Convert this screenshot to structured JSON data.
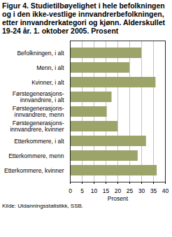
{
  "chart_data": {
    "type": "bar",
    "orientation": "horizontal",
    "title": "Figur 4. Studietilbøyelighet i hele befolkningen og i den ikke-vestlige innvandrerbefolkningen, etter innvandrerkategori og kjønn. Alderskullet 19-24 år. 1. oktober 2005. Prosent",
    "categories": [
      "Befolkningen, i alt",
      "Menn, i alt",
      "Kvinner, i alt",
      "Førstegenerasjons-\ninnvandrere, i alt",
      "Førstegenerasjons-\ninnvandrere, menn",
      "Førstegenerasjons-\ninnvandrere, kvinner",
      "Etterkommere, i alt",
      "Etterkommere, menn",
      "Etterkommere, kvinner"
    ],
    "values": [
      30,
      25,
      36,
      17.5,
      15.5,
      20,
      32,
      28.5,
      36.5
    ],
    "color": "#9ca46a",
    "x_label": "Prosent",
    "xlim": [
      0,
      40
    ],
    "xticks": [
      0,
      5,
      10,
      15,
      20,
      25,
      30,
      35,
      40
    ],
    "grid": true,
    "caption": "Kilde: Utdanningsstatistikk, SSB."
  }
}
